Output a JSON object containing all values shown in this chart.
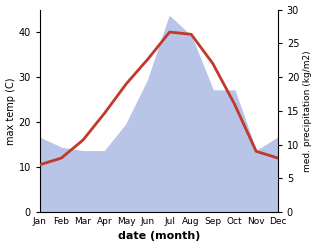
{
  "months": [
    "Jan",
    "Feb",
    "Mar",
    "Apr",
    "May",
    "Jun",
    "Jul",
    "Aug",
    "Sep",
    "Oct",
    "Nov",
    "Dec"
  ],
  "temp": [
    10.5,
    12.0,
    16.0,
    22.0,
    28.5,
    34.0,
    40.0,
    39.5,
    33.0,
    24.0,
    13.5,
    12.0
  ],
  "precip": [
    11.0,
    9.5,
    9.0,
    9.0,
    13.0,
    19.5,
    29.0,
    26.0,
    18.0,
    18.0,
    9.0,
    11.0
  ],
  "temp_color": "#c0392b",
  "precip_fill_color": "#b8c4e8",
  "xlabel": "date (month)",
  "ylabel_left": "max temp (C)",
  "ylabel_right": "med. precipitation (kg/m2)",
  "temp_ylim": [
    0,
    45
  ],
  "precip_ylim": [
    0,
    30
  ],
  "temp_yticks": [
    0,
    10,
    20,
    30,
    40
  ],
  "precip_yticks": [
    0,
    5,
    10,
    15,
    20,
    25,
    30
  ],
  "bg_color": "#ffffff",
  "line_width": 2.0
}
